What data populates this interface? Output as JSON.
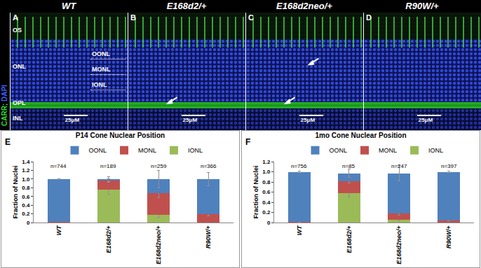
{
  "figure_panels": {
    "stain_label": [
      "CARR;",
      "DAPI"
    ],
    "layers_left": [
      "OS",
      "ONL",
      "OPL",
      "INL"
    ],
    "layers_right": [
      "OONL",
      "MONL",
      "IONL"
    ],
    "panels": [
      {
        "letter": "A",
        "title": "WT",
        "scale_bar": "25μM",
        "arrows": 0
      },
      {
        "letter": "B",
        "title": "E168d2/+",
        "scale_bar": "25μM",
        "arrows": 1
      },
      {
        "letter": "C",
        "title": "E168d2neo/+",
        "scale_bar": "25μM",
        "arrows": 2
      },
      {
        "letter": "D",
        "title": "R90W/+",
        "scale_bar": "25μM",
        "arrows": 0
      }
    ]
  },
  "chart_data": [
    {
      "type": "bar",
      "stacked": true,
      "panel": "E",
      "title": "P14 Cone Nuclear Position",
      "y_label": "Fraction of Nuclei",
      "categories": [
        "WT",
        "E168d2/+",
        "E168d2neo/+",
        "R90W/+"
      ],
      "n_labels": [
        "n=744",
        "n=189",
        "n=259",
        "n=366"
      ],
      "series": [
        {
          "name": "IONL",
          "color": "#9bbb59",
          "values": [
            0.0,
            0.75,
            0.17,
            0.0
          ],
          "errors": [
            0.0,
            0.1,
            0.05,
            0.0
          ]
        },
        {
          "name": "MONL",
          "color": "#c0504d",
          "values": [
            0.02,
            0.22,
            0.5,
            0.19
          ],
          "errors": [
            0.0,
            0.04,
            0.1,
            0.04
          ]
        },
        {
          "name": "OONL",
          "color": "#4f81bd",
          "values": [
            0.98,
            0.03,
            0.33,
            0.81
          ],
          "errors": [
            0.01,
            0.06,
            0.2,
            0.15
          ]
        }
      ],
      "ylim": [
        0,
        1.4
      ],
      "yticks": [
        0,
        0.2,
        0.4,
        0.6,
        0.8,
        {
          "value": 1.0,
          "label": "1.0"
        },
        1.2,
        1.4
      ],
      "grid": false,
      "legend": "top"
    },
    {
      "type": "bar",
      "stacked": true,
      "panel": "F",
      "title": "1mo Cone Nuclear Position",
      "y_label": "Fraction of Nuclei",
      "categories": [
        "WT",
        "E168d2/+",
        "E168d2neo/+",
        "R90W/+"
      ],
      "n_labels": [
        "n=756",
        "n=85",
        "n=247",
        "n=397"
      ],
      "series": [
        {
          "name": "IONL",
          "color": "#9bbb59",
          "values": [
            0.0,
            0.58,
            0.06,
            0.0
          ],
          "errors": [
            0.0,
            0.08,
            0.02,
            0.0
          ]
        },
        {
          "name": "MONL",
          "color": "#c0504d",
          "values": [
            0.01,
            0.24,
            0.12,
            0.04
          ],
          "errors": [
            0.0,
            0.04,
            0.04,
            0.01
          ]
        },
        {
          "name": "OONL",
          "color": "#4f81bd",
          "values": [
            0.99,
            0.15,
            0.79,
            0.96
          ],
          "errors": [
            0.01,
            0.08,
            0.15,
            0.02
          ]
        }
      ],
      "ylim": [
        0,
        1.2
      ],
      "yticks": [
        0,
        0.2,
        0.4,
        0.6,
        0.8,
        {
          "value": 1.0,
          "label": "1.0"
        },
        1.2
      ],
      "grid": false,
      "legend": "top"
    }
  ]
}
